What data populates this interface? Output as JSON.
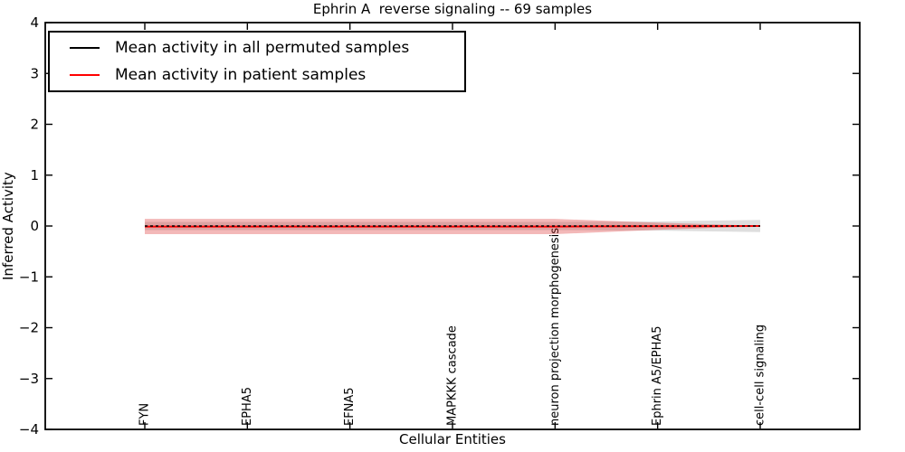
{
  "chart_data": {
    "type": "line",
    "title": "Ephrin A  reverse signaling -- 69 samples",
    "xlabel": "Cellular Entities",
    "ylabel": "Inferred Activity",
    "ylim": [
      -4,
      4
    ],
    "yticks": [
      4,
      3,
      2,
      1,
      0,
      -1,
      -2,
      -3,
      -4
    ],
    "ytick_labels": [
      "4",
      "3",
      "2",
      "1",
      "0",
      "−1",
      "−2",
      "−3",
      "−4"
    ],
    "categories": [
      "FYN",
      "EPHA5",
      "EFNA5",
      "MAPKKK cascade",
      "neuron projection morphogenesis",
      "Ephrin A5/EPHA5",
      "cell-cell signaling"
    ],
    "grid": false,
    "legend_position": "upper left",
    "series": [
      {
        "name": "Mean activity in all permuted samples",
        "color": "#000000",
        "line_style": "dashed",
        "values": [
          0,
          0,
          0,
          0,
          0,
          0,
          0
        ],
        "band_std": [
          0.08,
          0.08,
          0.08,
          0.08,
          0.08,
          0.09,
          0.12
        ],
        "band_color": "#000000",
        "band_opacity": 0.13
      },
      {
        "name": "Mean activity in patient samples",
        "color": "#ff0000",
        "line_style": "solid",
        "values": [
          -0.01,
          -0.01,
          -0.01,
          -0.01,
          -0.01,
          -0.005,
          0
        ],
        "band_std": [
          0.15,
          0.15,
          0.15,
          0.15,
          0.15,
          0.07,
          0.005
        ],
        "band_color": "#dd3333",
        "band_opacity": 0.35
      }
    ]
  }
}
